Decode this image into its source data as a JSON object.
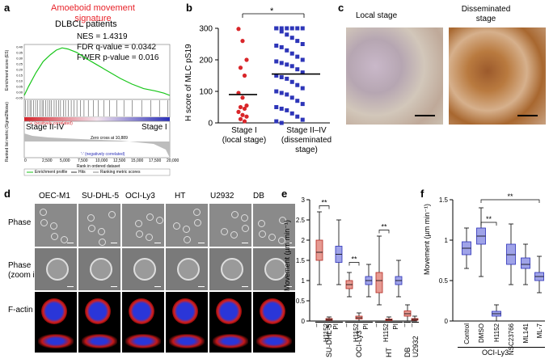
{
  "panels": {
    "a": "a",
    "b": "b",
    "c": "c",
    "d": "d",
    "e": "e",
    "f": "f"
  },
  "panel_a": {
    "title": "Amoeboid movement signature",
    "subtitle": "DLBCL patients",
    "stats": [
      "NES = 1.4319",
      "FDR q-value = 0.0342",
      "FWER p-value = 0.016"
    ],
    "left_label": "Stage II-IV",
    "right_label": "Stage I",
    "pos_corr": "'+' (positively correlated)",
    "neg_corr": "'-' (negatively correlated)",
    "zero_cross": "Zero cross at 10,889",
    "ylabel_top": "Enrichment score (ES)",
    "ylabel_bottom": "Ranked list metric (Signal2Noise)",
    "xlabel": "Rank in ordered dataset",
    "top_ticks": [
      "0.40",
      "0.35",
      "0.30",
      "0.25",
      "0.20",
      "0.15",
      "0.10",
      "0.05",
      "0.00",
      "-0.05"
    ],
    "x_ticks": [
      "0",
      "2,500",
      "5,000",
      "7,500",
      "10,000",
      "12,500",
      "15,000",
      "17,500",
      "20,000"
    ],
    "legend": [
      "Enrichment profile",
      "Hits",
      "Ranking metric scores"
    ],
    "colors": {
      "title": "#e8232a",
      "profile": "#18c61a",
      "pos": "#d4232a",
      "neg": "#2a2fb8"
    }
  },
  "panel_b": {
    "ylabel": "H score of MLC pS19",
    "sig": "*",
    "y_ticks": [
      "0",
      "100",
      "200",
      "300"
    ],
    "groups": [
      {
        "line1": "Stage I",
        "line2": "(local stage)"
      },
      {
        "line1": "Stage II–IV",
        "line2": "(disseminated",
        "line3": "stage)"
      }
    ],
    "colors": {
      "stage1": "#d9262a",
      "stage2": "#2d35b8"
    }
  },
  "chart_data": [
    {
      "type": "scatter",
      "ylabel": "H score of MLC pS19",
      "ylim": [
        0,
        300
      ],
      "categories": [
        "Stage I (local stage)",
        "Stage II–IV (disseminated stage)"
      ],
      "series": [
        {
          "name": "Stage I (local stage)",
          "values": [
            298,
            260,
            200,
            175,
            150,
            95,
            80,
            55,
            50,
            45,
            35,
            25,
            20,
            12,
            5
          ],
          "mean": 90
        },
        {
          "name": "Stage II–IV (disseminated stage)",
          "values": [
            300,
            300,
            300,
            300,
            300,
            300,
            300,
            290,
            280,
            270,
            260,
            250,
            245,
            240,
            230,
            220,
            210,
            200,
            195,
            190,
            185,
            180,
            170,
            160,
            150,
            145,
            140,
            130,
            120,
            110,
            100,
            95,
            90,
            80,
            70,
            60,
            50,
            45,
            40,
            30,
            20,
            10,
            5,
            0
          ],
          "mean": 155
        }
      ]
    },
    {
      "type": "box",
      "ylabel": "Movement (µm min⁻¹)",
      "ylim": [
        0,
        3
      ],
      "categories": [
        "–",
        "H1152",
        "PI",
        "–",
        "H1152",
        "PI",
        "–",
        "H1152",
        "PI",
        "–",
        "–"
      ],
      "groups": [
        "SU-DHL-5",
        "OCI-Ly3",
        "HT",
        "DB",
        "U2932"
      ],
      "boxes": [
        {
          "min": 0.9,
          "q1": 1.5,
          "median": 1.7,
          "q3": 2.0,
          "max": 2.7,
          "color": "red"
        },
        {
          "min": 0.0,
          "q1": 0.02,
          "median": 0.04,
          "q3": 0.06,
          "max": 0.1,
          "color": "red"
        },
        {
          "min": 0.9,
          "q1": 1.45,
          "median": 1.65,
          "q3": 1.85,
          "max": 2.5,
          "color": "blue"
        },
        {
          "min": 0.6,
          "q1": 0.8,
          "median": 0.9,
          "q3": 1.0,
          "max": 1.2,
          "color": "red"
        },
        {
          "min": 0.0,
          "q1": 0.05,
          "median": 0.08,
          "q3": 0.12,
          "max": 0.2,
          "color": "red"
        },
        {
          "min": 0.6,
          "q1": 0.9,
          "median": 1.0,
          "q3": 1.1,
          "max": 1.4,
          "color": "blue"
        },
        {
          "min": 0.4,
          "q1": 0.7,
          "median": 1.0,
          "q3": 1.2,
          "max": 2.1,
          "color": "red"
        },
        {
          "min": 0.0,
          "q1": 0.01,
          "median": 0.03,
          "q3": 0.05,
          "max": 0.1,
          "color": "red"
        },
        {
          "min": 0.6,
          "q1": 0.9,
          "median": 1.0,
          "q3": 1.1,
          "max": 1.5,
          "color": "blue"
        },
        {
          "min": 0.0,
          "q1": 0.12,
          "median": 0.18,
          "q3": 0.25,
          "max": 0.4,
          "color": "red"
        },
        {
          "min": 0.0,
          "q1": 0.02,
          "median": 0.04,
          "q3": 0.06,
          "max": 0.12,
          "color": "red"
        }
      ],
      "significance": [
        "**",
        "**",
        "**"
      ]
    },
    {
      "type": "box",
      "ylabel": "Movement (µm min⁻¹)",
      "ylim": [
        0,
        1.5
      ],
      "categories": [
        "Control",
        "DMSO",
        "H1152",
        "NSC23766",
        "ML141",
        "ML-7"
      ],
      "group": "OCI-Ly3",
      "boxes": [
        {
          "min": 0.65,
          "q1": 0.82,
          "median": 0.9,
          "q3": 0.98,
          "max": 1.15
        },
        {
          "min": 0.55,
          "q1": 0.95,
          "median": 1.05,
          "q3": 1.15,
          "max": 1.4
        },
        {
          "min": 0.0,
          "q1": 0.06,
          "median": 0.09,
          "q3": 0.12,
          "max": 0.2
        },
        {
          "min": 0.45,
          "q1": 0.7,
          "median": 0.82,
          "q3": 0.95,
          "max": 1.2
        },
        {
          "min": 0.45,
          "q1": 0.65,
          "median": 0.7,
          "q3": 0.78,
          "max": 0.95
        },
        {
          "min": 0.35,
          "q1": 0.5,
          "median": 0.55,
          "q3": 0.6,
          "max": 0.8
        }
      ],
      "significance": [
        "**",
        "**"
      ]
    }
  ],
  "panel_c": {
    "left_title": "Local stage",
    "right_title_1": "Disseminated",
    "right_title_2": "stage"
  },
  "panel_d": {
    "columns": [
      "OEC-M1",
      "SU-DHL-5",
      "OCI-Ly3",
      "HT",
      "U2932",
      "DB"
    ],
    "rows": [
      "Phase",
      "Phase\n(zoom in)",
      "F-actin"
    ],
    "row1": "Phase",
    "row2a": "Phase",
    "row2b": "(zoom in)",
    "row3": "F-actin"
  },
  "panel_e": {
    "ylabel": "Movement (µm min⁻¹)",
    "y_ticks": [
      "0",
      "0.5",
      "1",
      "1.5",
      "2",
      "2.5",
      "3"
    ],
    "x_labels": [
      "–",
      "H1152",
      "PI",
      "–",
      "H1152",
      "PI",
      "–",
      "H1152",
      "PI",
      "–",
      "–"
    ],
    "group_labels": [
      "SU-DHL-5",
      "OCI-Ly3",
      "HT",
      "DB",
      "U2932"
    ],
    "sig": "**"
  },
  "panel_f": {
    "ylabel": "Movement (µm min⁻¹)",
    "y_ticks": [
      "0",
      "0.5",
      "1",
      "1.5"
    ],
    "x_labels": [
      "Control",
      "DMSO",
      "H1152",
      "NSC23766",
      "ML141",
      "ML-7"
    ],
    "group_label": "OCI-Ly3",
    "sig": "**"
  }
}
